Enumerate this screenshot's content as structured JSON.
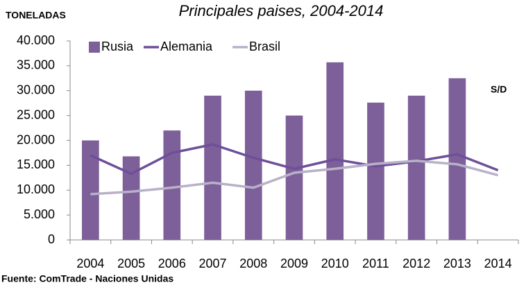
{
  "chart_data": {
    "type": "bar",
    "title": "Principales paises, 2004-2014",
    "ylabel": "TONELADAS",
    "annotation": "S/D",
    "source": "Fuente: ComTrade - Naciones Unidas",
    "categories": [
      "2004",
      "2005",
      "2006",
      "2007",
      "2008",
      "2009",
      "2010",
      "2011",
      "2012",
      "2013",
      "2014"
    ],
    "series": [
      {
        "name": "Rusia",
        "type": "bar",
        "color": "#7d6099",
        "values": [
          20000,
          16800,
          22000,
          29000,
          30000,
          25000,
          35700,
          27600,
          29000,
          32500,
          null
        ]
      },
      {
        "name": "Alemania",
        "type": "line",
        "color": "#6e4f99",
        "values": [
          17000,
          13300,
          17500,
          19200,
          16500,
          14300,
          16200,
          14800,
          15800,
          17200,
          14000
        ]
      },
      {
        "name": "Brasil",
        "type": "line",
        "color": "#b8b1c8",
        "values": [
          9200,
          9700,
          10500,
          11500,
          10500,
          13500,
          14300,
          15300,
          15900,
          15200,
          13000
        ]
      }
    ],
    "ylim": [
      0,
      40000
    ],
    "yticks": [
      0,
      {
        "value": 5000,
        "label": "5.000"
      },
      {
        "value": 10000,
        "label": "10.000"
      },
      {
        "value": 15000,
        "label": "15.000"
      },
      {
        "value": 20000,
        "label": "20.000"
      },
      {
        "value": 25000,
        "label": "25.000"
      },
      {
        "value": 30000,
        "label": "30.000"
      },
      {
        "value": 35000,
        "label": "35.000"
      },
      {
        "value": 40000,
        "label": "40.000"
      }
    ]
  }
}
